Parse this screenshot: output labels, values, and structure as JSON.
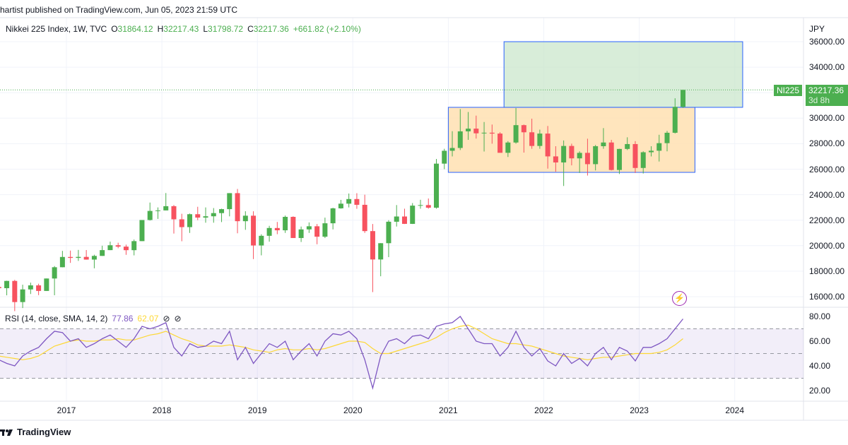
{
  "header": {
    "published": "hartist published on TradingView.com, Jun 05, 2023 21:59 UTC"
  },
  "legend": {
    "symbol": "Nikkei 225 Index, 1W, TVC",
    "o_label": "O",
    "o": "31864.12",
    "h_label": "H",
    "h": "32217.43",
    "l_label": "L",
    "l": "31798.72",
    "c_label": "C",
    "c": "32217.36",
    "change": "+661.82 (+2.10%)"
  },
  "rsi_legend": {
    "label": "RSI (14, close, SMA, 14, 2)",
    "rsi": "77.86",
    "sma": "62.07"
  },
  "price_scale": {
    "currency": "JPY",
    "labels": [
      "36000.00",
      "34000.00",
      "30000.00",
      "28000.00",
      "26000.00",
      "24000.00",
      "22000.00",
      "20000.00",
      "18000.00",
      "16000.00"
    ],
    "symbol_badge": "NI225",
    "last_price": "32217.36",
    "countdown": "3d 8h"
  },
  "rsi_scale": {
    "labels": [
      "80.00",
      "60.00",
      "40.00",
      "20.00"
    ]
  },
  "time_axis": {
    "labels": [
      "2017",
      "2018",
      "2019",
      "2020",
      "2021",
      "2022",
      "2023",
      "2024"
    ]
  },
  "footer": {
    "brand": "TradingView"
  },
  "colors": {
    "up": "#4caf50",
    "down": "#f7525f",
    "rsi": "#7e57c2",
    "rsi_sma": "#fdd835",
    "range_box": "#ffe0b2",
    "target_box": "#c8e6c9",
    "box_border": "#2962ff"
  },
  "icons": [
    "lightning-icon",
    "tradingview-logo-icon",
    "eye-off-icon"
  ],
  "chart_data": [
    {
      "type": "candlestick",
      "title": "Nikkei 225 Index, 1W, TVC",
      "interval_shown": "1W",
      "ylabel": "JPY",
      "ylim": [
        15000,
        37000
      ],
      "grid": true,
      "start": "2016-04",
      "period": "month (approximation of weekly bars)",
      "ohlc": [
        [
          16759,
          17613,
          15471,
          16666
        ],
        [
          16666,
          17251,
          16106,
          17235
        ],
        [
          17235,
          17318,
          14864,
          15576
        ],
        [
          15576,
          16938,
          15107,
          16569
        ],
        [
          16569,
          17102,
          16207,
          16887
        ],
        [
          16887,
          17014,
          16120,
          16450
        ],
        [
          16450,
          17426,
          16450,
          17425
        ],
        [
          17425,
          18400,
          16111,
          18308
        ],
        [
          18308,
          19592,
          18300,
          19114
        ],
        [
          19114,
          19615,
          18650,
          19041
        ],
        [
          19041,
          19668,
          18805,
          19119
        ],
        [
          19119,
          19656,
          18900,
          18909
        ],
        [
          18909,
          19289,
          18224,
          19197
        ],
        [
          19197,
          19998,
          19197,
          19651
        ],
        [
          19651,
          20318,
          19650,
          20033
        ],
        [
          20033,
          20231,
          19800,
          19925
        ],
        [
          19925,
          20080,
          19280,
          19646
        ],
        [
          19646,
          20481,
          19239,
          20356
        ],
        [
          20356,
          22012,
          20356,
          22012
        ],
        [
          22012,
          23382,
          21972,
          22725
        ],
        [
          22725,
          23000,
          22100,
          22765
        ],
        [
          22765,
          24129,
          22765,
          23098
        ],
        [
          23098,
          23186,
          20950,
          22068
        ],
        [
          22068,
          22502,
          20347,
          21454
        ],
        [
          21454,
          22520,
          21000,
          22468
        ],
        [
          22468,
          23050,
          22000,
          22202
        ],
        [
          22202,
          23000,
          21800,
          22305
        ],
        [
          22305,
          22949,
          21800,
          22554
        ],
        [
          22554,
          22900,
          21850,
          22865
        ],
        [
          22865,
          24120,
          22300,
          24120
        ],
        [
          24120,
          24448,
          20971,
          21920
        ],
        [
          21920,
          22700,
          21243,
          22351
        ],
        [
          22351,
          22698,
          18948,
          20015
        ],
        [
          20015,
          20892,
          19241,
          20773
        ],
        [
          20773,
          21556,
          20315,
          21385
        ],
        [
          21385,
          21860,
          20900,
          21206
        ],
        [
          21206,
          22362,
          21000,
          22259
        ],
        [
          22259,
          22300,
          20600,
          20601
        ],
        [
          20601,
          21500,
          20289,
          21276
        ],
        [
          21276,
          21823,
          21000,
          21521
        ],
        [
          21521,
          21700,
          20110,
          20704
        ],
        [
          20704,
          22200,
          20600,
          21756
        ],
        [
          21756,
          22974,
          21276,
          22927
        ],
        [
          22927,
          23592,
          22900,
          23294
        ],
        [
          23294,
          24091,
          23000,
          23657
        ],
        [
          23657,
          24116,
          22892,
          23205
        ],
        [
          23205,
          24000,
          21000,
          21143
        ],
        [
          21143,
          21700,
          16358,
          18917
        ],
        [
          18917,
          20200,
          17600,
          20194
        ],
        [
          20194,
          22000,
          19100,
          21878
        ],
        [
          21878,
          23185,
          21500,
          22288
        ],
        [
          22288,
          22900,
          21700,
          21710
        ],
        [
          21710,
          23340,
          21700,
          23140
        ],
        [
          23140,
          23600,
          22900,
          23185
        ],
        [
          23185,
          23700,
          22900,
          22977
        ],
        [
          22977,
          26800,
          22900,
          26434
        ],
        [
          26434,
          27600,
          26000,
          27444
        ],
        [
          27444,
          28979,
          27000,
          27663
        ],
        [
          27663,
          30714,
          27500,
          28966
        ],
        [
          28966,
          30485,
          28300,
          29179
        ],
        [
          29179,
          30200,
          28400,
          28812
        ],
        [
          28812,
          29700,
          27385,
          28860
        ],
        [
          28860,
          29500,
          28000,
          28792
        ],
        [
          28792,
          28900,
          27300,
          27284
        ],
        [
          27284,
          28200,
          26954,
          28090
        ],
        [
          28090,
          30795,
          28000,
          29453
        ],
        [
          29453,
          29500,
          27300,
          28893
        ],
        [
          28893,
          29960,
          27600,
          27822
        ],
        [
          27822,
          29100,
          27600,
          28792
        ],
        [
          28792,
          29388,
          26044,
          27002
        ],
        [
          27002,
          27800,
          25800,
          26527
        ],
        [
          26527,
          28252,
          24681,
          27821
        ],
        [
          27821,
          28000,
          26300,
          26848
        ],
        [
          26848,
          27400,
          25700,
          27280
        ],
        [
          27280,
          28389,
          25500,
          26393
        ],
        [
          26393,
          27900,
          25900,
          27802
        ],
        [
          27802,
          29222,
          27600,
          28092
        ],
        [
          28092,
          28300,
          25900,
          25937
        ],
        [
          25937,
          27600,
          25621,
          27587
        ],
        [
          27587,
          28500,
          27500,
          27969
        ],
        [
          27969,
          28200,
          25700,
          26095
        ],
        [
          26095,
          27400,
          25661,
          27327
        ],
        [
          27327,
          27800,
          27000,
          27446
        ],
        [
          27446,
          28700,
          26600,
          28041
        ],
        [
          28041,
          29000,
          27400,
          28856
        ],
        [
          28856,
          31560,
          28800,
          30888
        ],
        [
          30888,
          32217,
          30800,
          32217
        ]
      ],
      "last_price": 32217.36,
      "boxes": [
        {
          "name": "range",
          "from": "2021-01",
          "to": "2023-08",
          "top": 30850,
          "bottom": 25750
        },
        {
          "name": "target",
          "from": "2021-08",
          "to": "2024-02",
          "top": 36000,
          "bottom": 30850
        }
      ]
    },
    {
      "type": "line",
      "title": "RSI (14, close, SMA, 14, 2)",
      "ylim": [
        15,
        85
      ],
      "bands": [
        30,
        50,
        70
      ],
      "series": [
        {
          "name": "RSI",
          "values": [
            45,
            42,
            40,
            48,
            52,
            55,
            62,
            68,
            67,
            60,
            62,
            55,
            58,
            62,
            65,
            60,
            55,
            62,
            72,
            70,
            72,
            75,
            55,
            48,
            58,
            55,
            56,
            60,
            58,
            68,
            45,
            55,
            42,
            50,
            58,
            55,
            60,
            45,
            52,
            58,
            48,
            60,
            66,
            65,
            68,
            62,
            45,
            22,
            48,
            60,
            62,
            58,
            64,
            65,
            62,
            72,
            74,
            75,
            80,
            70,
            60,
            58,
            58,
            48,
            55,
            68,
            55,
            48,
            54,
            44,
            40,
            50,
            42,
            46,
            40,
            50,
            55,
            45,
            55,
            52,
            44,
            55,
            55,
            58,
            62,
            70,
            78
          ]
        },
        {
          "name": "SMA",
          "values": [
            48,
            47,
            46,
            45,
            46,
            48,
            52,
            56,
            58,
            60,
            61,
            60,
            60,
            61,
            61,
            62,
            61,
            61,
            63,
            65,
            66,
            68,
            65,
            62,
            60,
            57,
            56,
            56,
            56,
            57,
            56,
            55,
            53,
            52,
            51,
            53,
            54,
            53,
            53,
            54,
            53,
            54,
            56,
            58,
            60,
            60,
            59,
            54,
            50,
            50,
            52,
            54,
            56,
            58,
            60,
            63,
            67,
            70,
            72,
            73,
            70,
            66,
            62,
            60,
            58,
            58,
            57,
            56,
            54,
            52,
            50,
            48,
            47,
            46,
            45,
            46,
            47,
            47,
            48,
            49,
            50,
            50,
            50,
            51,
            53,
            57,
            62
          ]
        }
      ]
    }
  ]
}
